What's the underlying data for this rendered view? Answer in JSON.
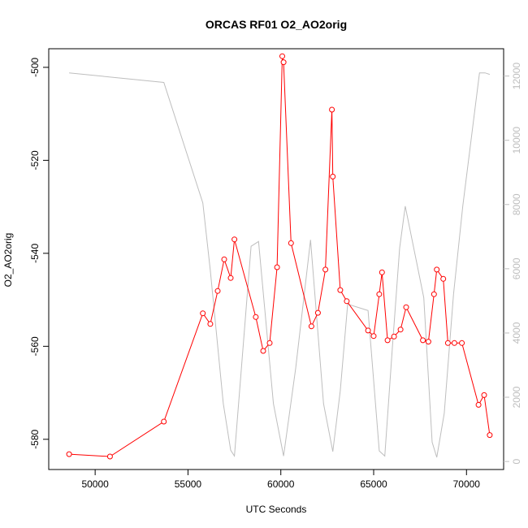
{
  "chart_data": {
    "type": "line",
    "title": "ORCAS RF01 O2_AO2orig",
    "xlabel": "UTC Seconds",
    "ylabel": "O2_AO2orig",
    "xlim": [
      47500,
      72000
    ],
    "ylim": [
      -586.5,
      -496
    ],
    "y2lim": [
      -250,
      12850
    ],
    "x_ticks": [
      50000,
      55000,
      60000,
      65000,
      70000
    ],
    "y_ticks": [
      -500,
      -520,
      -540,
      -560,
      -580
    ],
    "y2_ticks": [
      0,
      2000,
      4000,
      6000,
      8000,
      10000,
      12000
    ],
    "x_tick_labels": [
      "50000",
      "55000",
      "60000",
      "65000",
      "70000"
    ],
    "y_tick_labels": [
      "-500",
      "-520",
      "-540",
      "-560",
      "-580"
    ],
    "y2_tick_labels": [
      "0",
      "2000",
      "4000",
      "6000",
      "8000",
      "10000",
      "12000"
    ],
    "colors": {
      "series": "#ff0000",
      "secondary": "#bebebe",
      "axis": "#000000"
    },
    "series": [
      {
        "axis": "left",
        "style": "line-with-points",
        "x": [
          48600,
          50800,
          53700,
          55800,
          56200,
          56600,
          56950,
          57300,
          57500,
          58650,
          59050,
          59400,
          59800,
          60080,
          60150,
          60550,
          61650,
          62000,
          62400,
          62750,
          62800,
          63200,
          63550,
          64700,
          65000,
          65300,
          65450,
          65750,
          66100,
          66450,
          66750,
          67650,
          67950,
          68250,
          68400,
          68750,
          69000,
          69350,
          69750,
          70650,
          70950,
          71250
        ],
        "y": [
          -583.2,
          -583.7,
          -576.2,
          -552.9,
          -555.2,
          -548.1,
          -541.3,
          -545.3,
          -537.0,
          -553.7,
          -561.0,
          -559.3,
          -543.0,
          -497.6,
          -498.9,
          -537.8,
          -555.7,
          -552.8,
          -543.5,
          -509.1,
          -523.5,
          -547.9,
          -550.3,
          -556.6,
          -557.8,
          -548.8,
          -544.1,
          -558.7,
          -557.9,
          -556.4,
          -551.6,
          -558.7,
          -559.0,
          -548.8,
          -543.5,
          -545.5,
          -559.3,
          -559.3,
          -559.3,
          -572.6,
          -570.5,
          -579.1
        ]
      },
      {
        "axis": "right",
        "style": "line",
        "x": [
          48600,
          53700,
          55800,
          56200,
          56900,
          57300,
          57500,
          58400,
          58800,
          59600,
          60150,
          60800,
          61600,
          62300,
          62800,
          63200,
          63600,
          64700,
          65300,
          65600,
          66000,
          66400,
          66700,
          67700,
          68150,
          68400,
          68800,
          69300,
          69800,
          70700,
          71000,
          71250
        ],
        "y": [
          12100,
          11800,
          8050,
          5950,
          1800,
          350,
          170,
          6700,
          6850,
          1800,
          170,
          2900,
          6900,
          1800,
          310,
          2200,
          4900,
          4700,
          330,
          170,
          3500,
          6650,
          7950,
          5100,
          600,
          130,
          1500,
          5200,
          7950,
          12100,
          12100,
          12050
        ]
      }
    ]
  }
}
